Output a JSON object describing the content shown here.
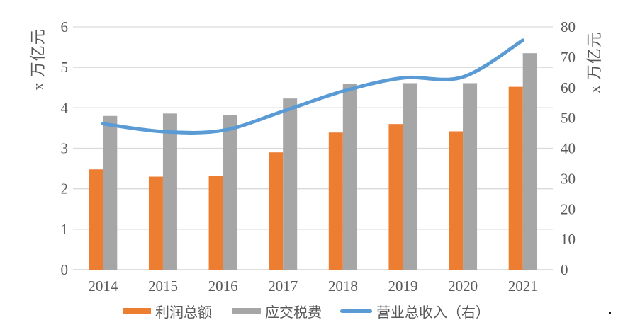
{
  "chart_data": {
    "type": "bar",
    "subtype": "grouped-bar-with-line-combo",
    "title": "",
    "categories": [
      "2014",
      "2015",
      "2016",
      "2017",
      "2018",
      "2019",
      "2020",
      "2021"
    ],
    "series": [
      {
        "id": "profit",
        "name": "利润总额",
        "type": "bar",
        "axis": "left",
        "color": "#ED7D31",
        "values": [
          2.48,
          2.3,
          2.32,
          2.9,
          3.39,
          3.6,
          3.42,
          4.52
        ]
      },
      {
        "id": "tax",
        "name": "应交税费",
        "type": "bar",
        "axis": "left",
        "color": "#A6A6A6",
        "values": [
          3.8,
          3.86,
          3.82,
          4.23,
          4.6,
          4.61,
          4.61,
          5.35
        ]
      },
      {
        "id": "revenue",
        "name": "营业总收入（右）",
        "type": "line",
        "axis": "right",
        "color": "#5B9BD5",
        "values": [
          48.1,
          45.5,
          45.9,
          52.2,
          58.8,
          63.2,
          63.5,
          75.6
        ]
      }
    ],
    "left_axis": {
      "title": "x 万亿元",
      "min": 0,
      "max": 6,
      "step": 1,
      "ticks": [
        "0",
        "1",
        "2",
        "3",
        "4",
        "5",
        "6"
      ]
    },
    "right_axis": {
      "title": "x 万亿元",
      "min": 0,
      "max": 80,
      "step": 10,
      "ticks": [
        "0",
        "10",
        "20",
        "30",
        "40",
        "50",
        "60",
        "70",
        "80"
      ]
    },
    "grid": true,
    "gridline_color": "#D9D9D9",
    "axis_line_color": "#C9C9C9",
    "text_color": "#595959",
    "legend_position": "bottom",
    "line_smoothed": true
  }
}
